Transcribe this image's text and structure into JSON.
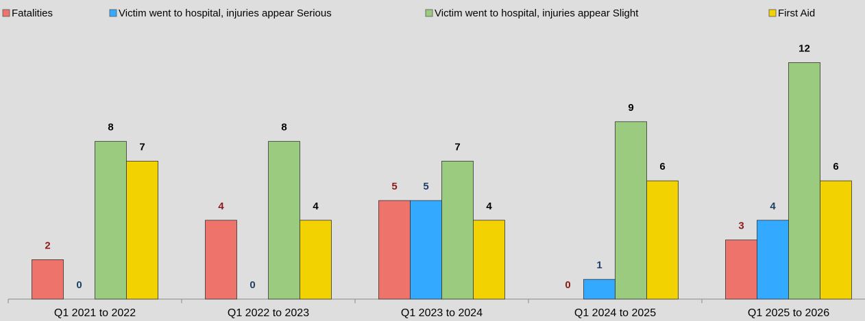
{
  "chart_data": {
    "type": "bar",
    "categories": [
      "Q1 2021 to 2022",
      "Q1 2022 to 2023",
      "Q1 2023 to 2024",
      "Q1 2024 to 2025",
      "Q1 2025 to 2026"
    ],
    "series": [
      {
        "name": "Fatalities",
        "color": "#ee736b",
        "label_color": "#8b1a1a",
        "values": [
          2,
          4,
          5,
          0,
          3
        ]
      },
      {
        "name": "Victim went to hospital, injuries appear Serious",
        "color": "#33aaff",
        "label_color": "#1f3f66",
        "values": [
          0,
          0,
          5,
          1,
          4
        ]
      },
      {
        "name": "Victim went to hospital, injuries appear Slight",
        "color": "#9bcb7f",
        "label_color": "#000000",
        "values": [
          8,
          8,
          7,
          9,
          12
        ]
      },
      {
        "name": "First Aid",
        "color": "#f2d200",
        "label_color": "#000000",
        "values": [
          7,
          4,
          4,
          6,
          6
        ]
      }
    ],
    "legend": "top"
  }
}
